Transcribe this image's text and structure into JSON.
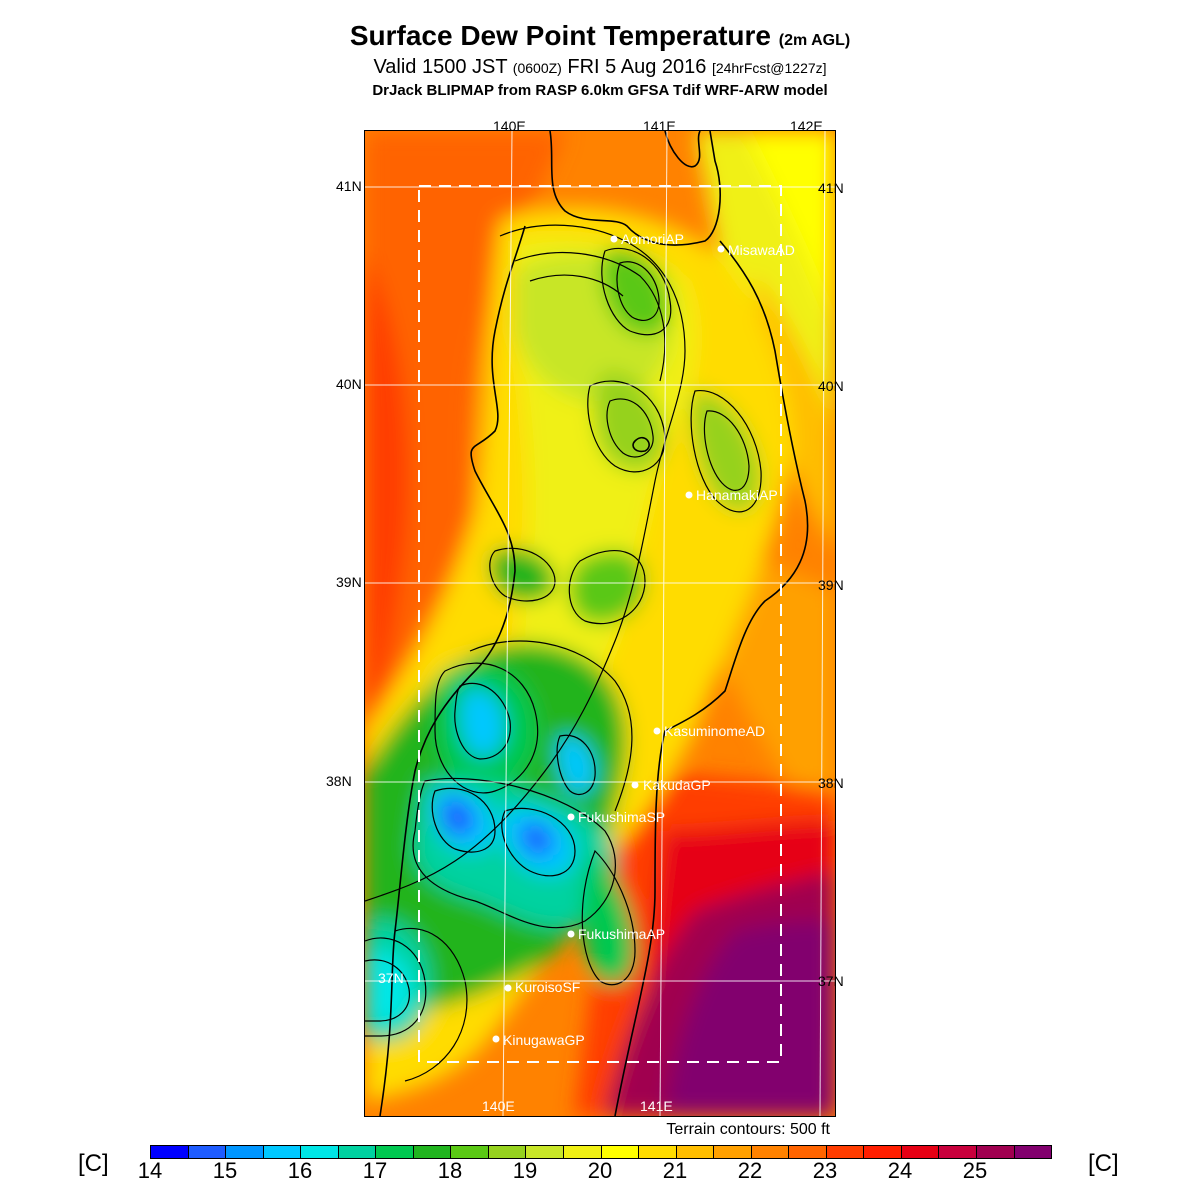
{
  "header": {
    "title": "Surface Dew Point Temperature",
    "title_suffix": "(2m AGL)",
    "valid_prefix": "Valid 1500 JST",
    "valid_zulu": "(0600Z)",
    "valid_date": "FRI 5 Aug 2016",
    "forecast_tag": "[24hrFcst@1227z]",
    "model_line": "DrJack BLIPMAP from RASP 6.0km GFSA Tdif WRF-ARW model"
  },
  "map": {
    "lon_labels_top": [
      "140E",
      "141E",
      "142E"
    ],
    "lon_labels_bottom": [
      "140E",
      "141E"
    ],
    "lat_labels_left": [
      "41N",
      "40N",
      "39N",
      "38N",
      "37N"
    ],
    "lat_labels_right": [
      "41N",
      "40N",
      "39N",
      "38N",
      "37N"
    ],
    "stations": [
      "AomoriAP",
      "MisawaAD",
      "HanamakiAP",
      "KasuminomeAD",
      "KakudaGP",
      "FukushimaSP",
      "FukushimaAP",
      "KuroisoSF",
      "KinugawaGP"
    ],
    "terrain_note": "Terrain contours: 500 ft"
  },
  "colorbar": {
    "unit_left": "[C]",
    "unit_right": "[C]",
    "ticks": [
      "14",
      "15",
      "16",
      "17",
      "18",
      "19",
      "20",
      "21",
      "22",
      "23",
      "24",
      "25"
    ],
    "colors": [
      "#0000ff",
      "#1e5cff",
      "#0096ff",
      "#00c8ff",
      "#00e6e6",
      "#00d2a0",
      "#00c850",
      "#20b41e",
      "#5ac814",
      "#96d21e",
      "#c8e628",
      "#f0f014",
      "#ffff00",
      "#ffdc00",
      "#ffbe00",
      "#ffa000",
      "#ff8200",
      "#ff6400",
      "#ff3c00",
      "#ff1e00",
      "#e60014",
      "#c8003c",
      "#a00050",
      "#82006e"
    ]
  }
}
